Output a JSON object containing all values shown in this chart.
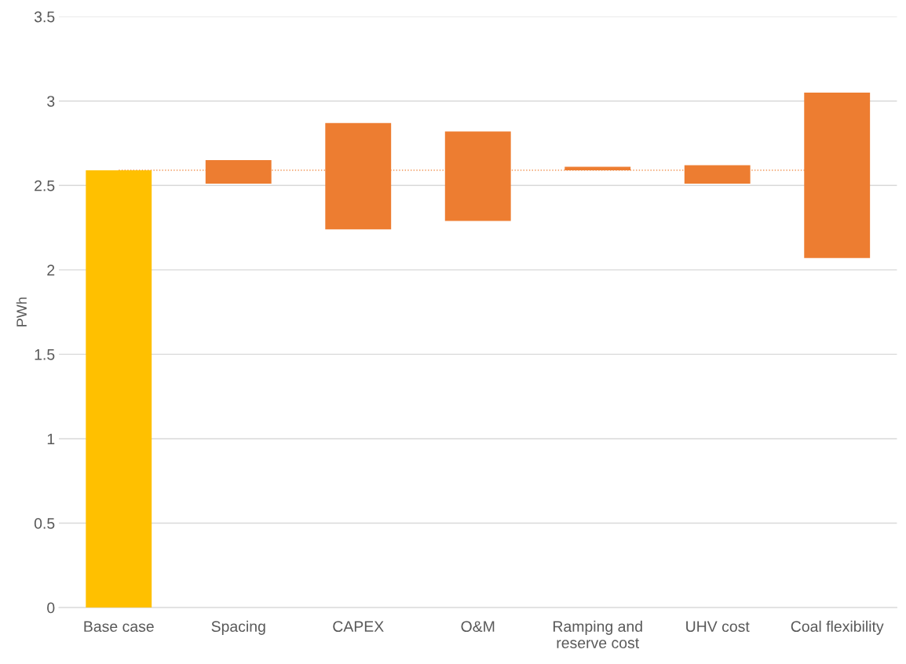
{
  "chart_data": {
    "type": "bar",
    "ylabel": "PWh",
    "categories": [
      "Base case",
      "Spacing",
      "CAPEX",
      "O&M",
      "Ramping and\nreserve cost",
      "UHV cost",
      "Coal flexibility"
    ],
    "base": [
      0,
      2.51,
      2.24,
      2.29,
      2.59,
      2.51,
      2.07
    ],
    "values": [
      2.59,
      0.14,
      0.63,
      0.53,
      0.02,
      0.11,
      0.98
    ],
    "colors": [
      "#ffc000",
      "#ed7d31",
      "#ed7d31",
      "#ed7d31",
      "#ed7d31",
      "#ed7d31",
      "#ed7d31"
    ],
    "ylim": [
      0,
      3.5
    ],
    "yticks": [
      0,
      0.5,
      1,
      1.5,
      2,
      2.5,
      3,
      3.5
    ],
    "grid": "y",
    "ref_lines": [
      {
        "axis": "y",
        "value": 2.59,
        "color": "#ed7d31",
        "line_style": "dotted"
      }
    ]
  }
}
